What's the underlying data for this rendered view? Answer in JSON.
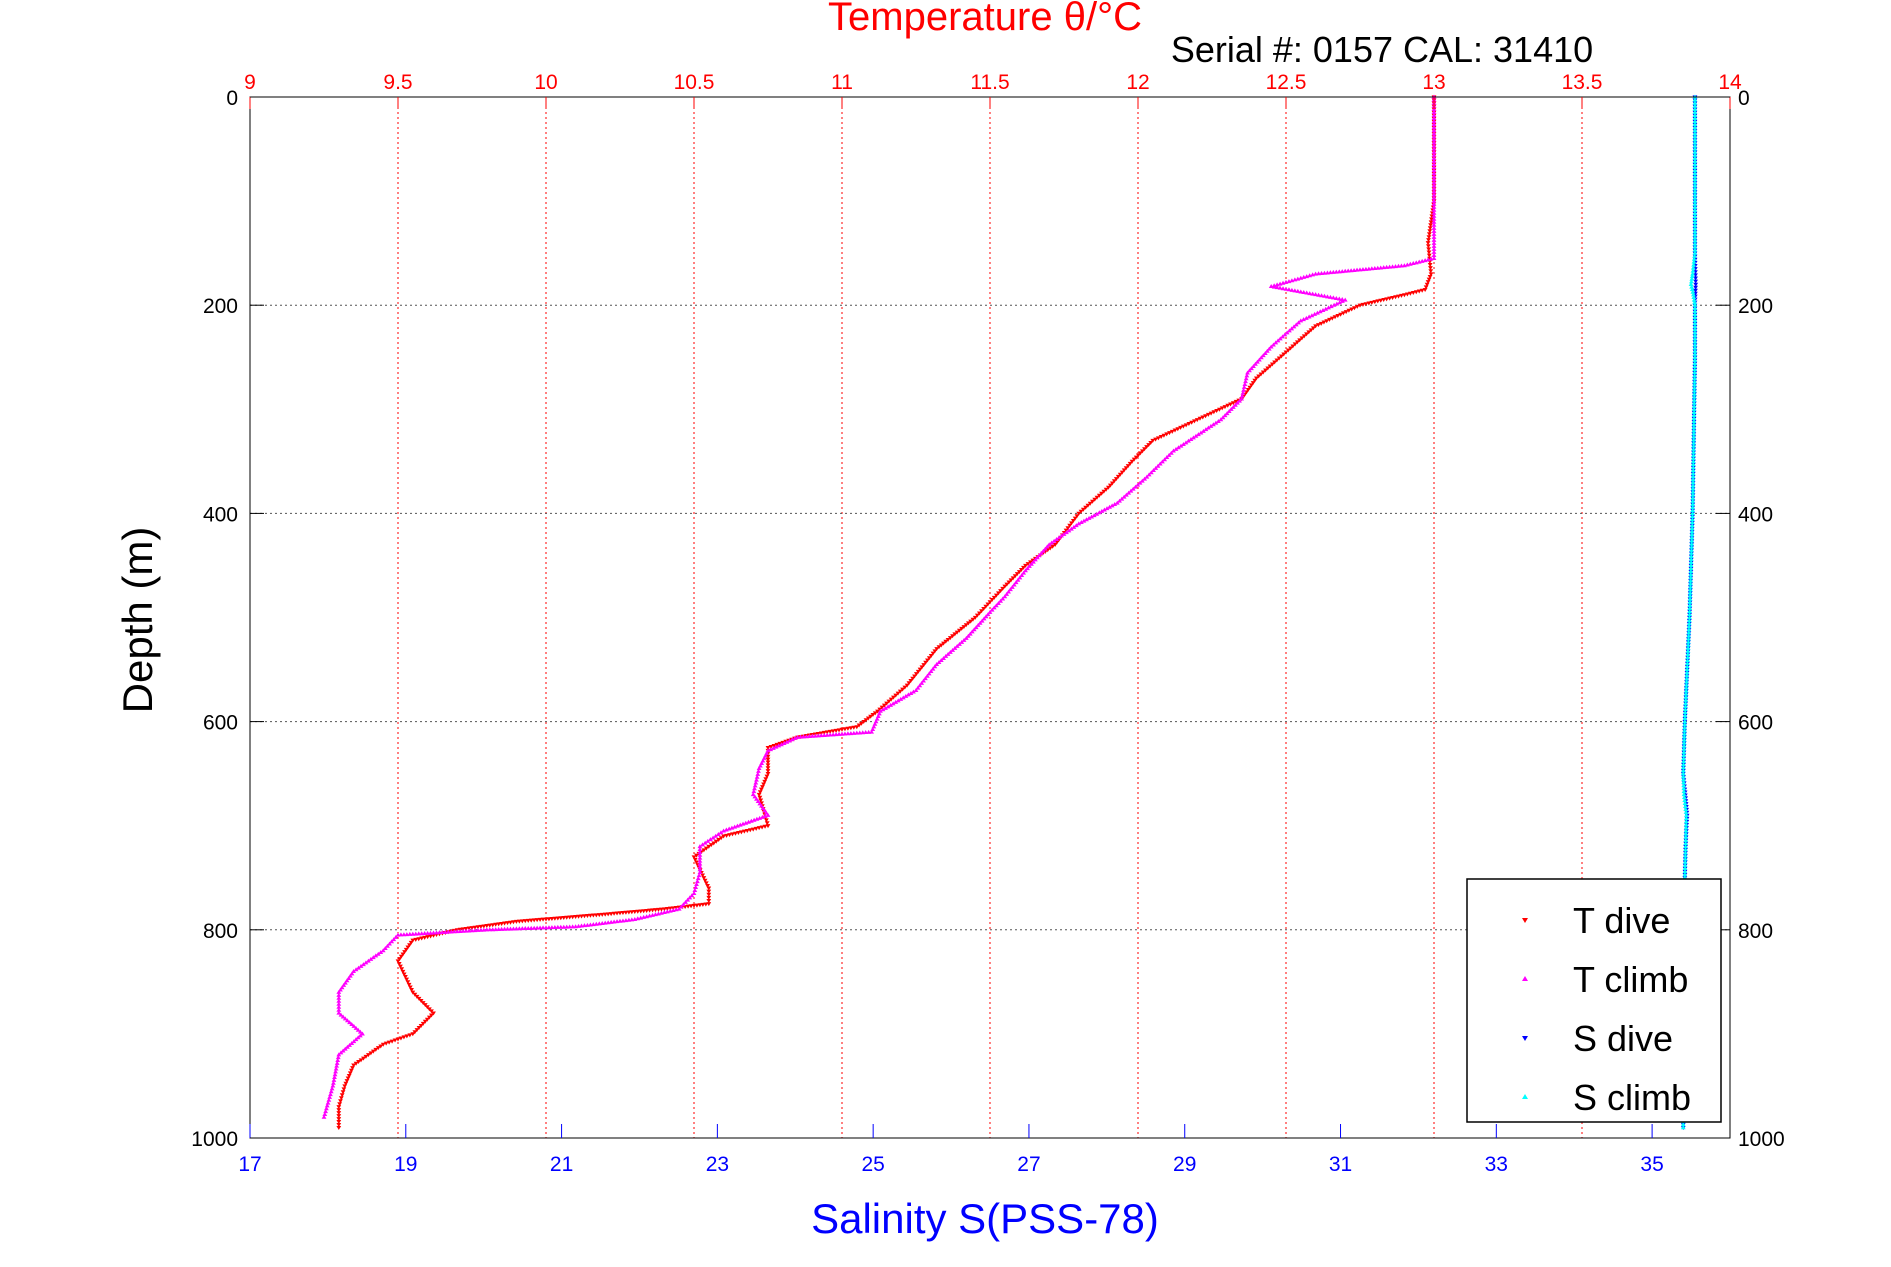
{
  "chart_data": {
    "type": "scatter",
    "title": "Temperature θ/°C",
    "subtitle": "Serial #: 0157  CAL: 31410",
    "xlabel": "Salinity S(PSS-78)",
    "ylabel": "Depth (m)",
    "colors": {
      "temperature_axis": "#ff0000",
      "salinity_axis": "#0000ff",
      "t_dive": "#ff0000",
      "t_climb": "#ff00ff",
      "s_dive": "#0000ff",
      "s_climb": "#00ffff",
      "grid": "#555555"
    },
    "temperature_axis": {
      "range": [
        9,
        14
      ],
      "ticks": [
        9,
        9.5,
        10,
        10.5,
        11,
        11.5,
        12,
        12.5,
        13,
        13.5,
        14
      ],
      "tick_labels": [
        "9",
        "9.5",
        "10",
        "10.5",
        "11",
        "11.5",
        "12",
        "12.5",
        "13",
        "13.5",
        "14"
      ]
    },
    "salinity_axis": {
      "range": [
        17,
        36
      ],
      "ticks": [
        17,
        19,
        21,
        23,
        25,
        27,
        29,
        31,
        33,
        35
      ],
      "tick_labels": [
        "17",
        "19",
        "21",
        "23",
        "25",
        "27",
        "29",
        "31",
        "33",
        "35"
      ]
    },
    "depth_axis": {
      "range": [
        0,
        1000
      ],
      "reversed": true,
      "ticks": [
        0,
        200,
        400,
        600,
        800,
        1000
      ],
      "tick_labels": [
        "0",
        "200",
        "400",
        "600",
        "800",
        "1000"
      ]
    },
    "grid": true,
    "legend": {
      "placement": "bottom-right",
      "entries": [
        "T dive",
        "T climb",
        "S dive",
        "S climb"
      ]
    },
    "series": [
      {
        "name": "T dive",
        "axis": "temperature",
        "marker": "triangle-down",
        "points": [
          [
            13.0,
            0
          ],
          [
            13.0,
            50
          ],
          [
            13.0,
            100
          ],
          [
            12.98,
            140
          ],
          [
            12.99,
            170
          ],
          [
            12.97,
            185
          ],
          [
            12.9,
            190
          ],
          [
            12.75,
            200
          ],
          [
            12.6,
            220
          ],
          [
            12.5,
            245
          ],
          [
            12.4,
            270
          ],
          [
            12.35,
            290
          ],
          [
            12.2,
            310
          ],
          [
            12.05,
            330
          ],
          [
            11.98,
            350
          ],
          [
            11.9,
            375
          ],
          [
            11.8,
            400
          ],
          [
            11.72,
            430
          ],
          [
            11.62,
            450
          ],
          [
            11.55,
            470
          ],
          [
            11.45,
            500
          ],
          [
            11.32,
            530
          ],
          [
            11.22,
            565
          ],
          [
            11.12,
            590
          ],
          [
            11.05,
            605
          ],
          [
            10.85,
            615
          ],
          [
            10.75,
            625
          ],
          [
            10.75,
            650
          ],
          [
            10.72,
            670
          ],
          [
            10.75,
            700
          ],
          [
            10.6,
            710
          ],
          [
            10.5,
            730
          ],
          [
            10.55,
            760
          ],
          [
            10.55,
            775
          ],
          [
            10.4,
            780
          ],
          [
            10.2,
            785
          ],
          [
            9.9,
            792
          ],
          [
            9.7,
            800
          ],
          [
            9.55,
            810
          ],
          [
            9.5,
            830
          ],
          [
            9.55,
            860
          ],
          [
            9.62,
            880
          ],
          [
            9.55,
            900
          ],
          [
            9.45,
            910
          ],
          [
            9.35,
            930
          ],
          [
            9.32,
            950
          ],
          [
            9.3,
            970
          ],
          [
            9.3,
            990
          ]
        ]
      },
      {
        "name": "T climb",
        "axis": "temperature",
        "marker": "triangle-up",
        "points": [
          [
            13.0,
            0
          ],
          [
            13.0,
            50
          ],
          [
            13.0,
            100
          ],
          [
            13.0,
            155
          ],
          [
            12.9,
            162
          ],
          [
            12.6,
            170
          ],
          [
            12.5,
            178
          ],
          [
            12.45,
            182
          ],
          [
            12.7,
            195
          ],
          [
            12.55,
            215
          ],
          [
            12.45,
            240
          ],
          [
            12.37,
            265
          ],
          [
            12.35,
            290
          ],
          [
            12.28,
            310
          ],
          [
            12.12,
            340
          ],
          [
            12.03,
            365
          ],
          [
            11.93,
            390
          ],
          [
            11.8,
            410
          ],
          [
            11.7,
            430
          ],
          [
            11.62,
            455
          ],
          [
            11.55,
            480
          ],
          [
            11.5,
            495
          ],
          [
            11.42,
            520
          ],
          [
            11.32,
            545
          ],
          [
            11.25,
            570
          ],
          [
            11.13,
            590
          ],
          [
            11.1,
            610
          ],
          [
            10.85,
            615
          ],
          [
            10.75,
            628
          ],
          [
            10.72,
            645
          ],
          [
            10.7,
            670
          ],
          [
            10.75,
            690
          ],
          [
            10.6,
            705
          ],
          [
            10.52,
            720
          ],
          [
            10.52,
            745
          ],
          [
            10.5,
            765
          ],
          [
            10.45,
            780
          ],
          [
            10.3,
            790
          ],
          [
            10.1,
            797
          ],
          [
            9.8,
            800
          ],
          [
            9.5,
            805
          ],
          [
            9.45,
            820
          ],
          [
            9.35,
            840
          ],
          [
            9.3,
            860
          ],
          [
            9.3,
            880
          ],
          [
            9.38,
            900
          ],
          [
            9.3,
            920
          ],
          [
            9.28,
            950
          ],
          [
            9.25,
            980
          ]
        ]
      },
      {
        "name": "S dive",
        "axis": "salinity",
        "marker": "triangle-down",
        "points": [
          [
            35.55,
            0
          ],
          [
            35.55,
            50
          ],
          [
            35.55,
            100
          ],
          [
            35.55,
            150
          ],
          [
            35.56,
            180
          ],
          [
            35.55,
            200
          ],
          [
            35.55,
            250
          ],
          [
            35.54,
            300
          ],
          [
            35.53,
            350
          ],
          [
            35.52,
            400
          ],
          [
            35.5,
            450
          ],
          [
            35.48,
            500
          ],
          [
            35.45,
            550
          ],
          [
            35.42,
            600
          ],
          [
            35.4,
            650
          ],
          [
            35.42,
            665
          ],
          [
            35.45,
            690
          ],
          [
            35.43,
            720
          ],
          [
            35.42,
            750
          ],
          [
            35.42,
            800
          ],
          [
            35.41,
            850
          ],
          [
            35.41,
            900
          ],
          [
            35.4,
            950
          ],
          [
            35.4,
            990
          ]
        ]
      },
      {
        "name": "S climb",
        "axis": "salinity",
        "marker": "triangle-up",
        "points": [
          [
            35.55,
            0
          ],
          [
            35.55,
            50
          ],
          [
            35.55,
            100
          ],
          [
            35.55,
            150
          ],
          [
            35.52,
            170
          ],
          [
            35.5,
            180
          ],
          [
            35.53,
            190
          ],
          [
            35.55,
            200
          ],
          [
            35.55,
            250
          ],
          [
            35.54,
            300
          ],
          [
            35.53,
            350
          ],
          [
            35.52,
            400
          ],
          [
            35.5,
            450
          ],
          [
            35.48,
            500
          ],
          [
            35.45,
            550
          ],
          [
            35.42,
            600
          ],
          [
            35.4,
            650
          ],
          [
            35.41,
            670
          ],
          [
            35.44,
            690
          ],
          [
            35.43,
            720
          ],
          [
            35.42,
            750
          ],
          [
            35.42,
            800
          ],
          [
            35.41,
            850
          ],
          [
            35.41,
            900
          ],
          [
            35.4,
            950
          ],
          [
            35.4,
            990
          ]
        ]
      }
    ]
  }
}
